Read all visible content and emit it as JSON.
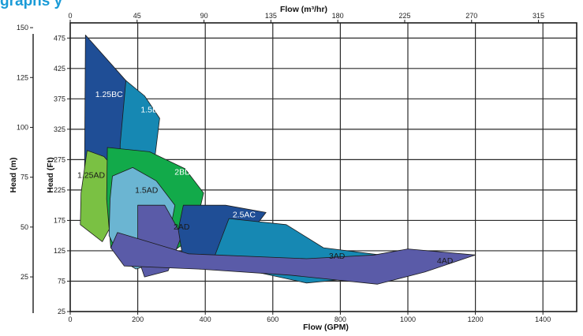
{
  "heading_fragment": "graphs y",
  "chart_data": {
    "type": "area",
    "title": "",
    "axes": {
      "x_bottom": {
        "label": "Flow (GPM)",
        "range": [
          0,
          1500
        ],
        "ticks": [
          "0",
          "200",
          "400",
          "600",
          "800",
          "1000",
          "1200",
          "1400"
        ]
      },
      "x_top": {
        "label": "Flow (m³/hr)",
        "range": [
          0,
          340.7
        ],
        "ticks": [
          "0",
          "45",
          "90",
          "135",
          "180",
          "225",
          "270",
          "315"
        ]
      },
      "y_inner": {
        "label": "Head (Ft)",
        "range": [
          25,
          500
        ],
        "ticks": [
          "25",
          "75",
          "125",
          "175",
          "225",
          "275",
          "325",
          "375",
          "425",
          "475"
        ]
      },
      "y_outer": {
        "label": "Head (m)",
        "range": [
          7.6,
          152.4
        ],
        "ticks": [
          "25",
          "50",
          "75",
          "100",
          "125",
          "150"
        ]
      }
    },
    "grid": true,
    "series": [
      {
        "name": "1.25BC",
        "color": "#1f4e96",
        "label_color": "#ffffff",
        "label_at": [
          115,
          378
        ],
        "points": [
          [
            45,
            480
          ],
          [
            165,
            405
          ],
          [
            205,
            355
          ],
          [
            195,
            305
          ],
          [
            155,
            270
          ],
          [
            110,
            238
          ],
          [
            75,
            220
          ],
          [
            42,
            218
          ]
        ]
      },
      {
        "name": "1.5BC",
        "color": "#1688b3",
        "label_color": "#ffffff",
        "label_at": [
          243,
          353
        ],
        "points": [
          [
            165,
            405
          ],
          [
            220,
            380
          ],
          [
            265,
            343
          ],
          [
            250,
            275
          ],
          [
            195,
            245
          ],
          [
            148,
            262
          ],
          [
            148,
            300
          ]
        ]
      },
      {
        "name": "1.25AD",
        "color": "#7ac143",
        "label_color": "#1a1a1a",
        "label_at": [
          62,
          245
        ],
        "points": [
          [
            50,
            290
          ],
          [
            100,
            280
          ],
          [
            155,
            245
          ],
          [
            135,
            180
          ],
          [
            95,
            140
          ],
          [
            30,
            168
          ],
          [
            32,
            220
          ]
        ]
      },
      {
        "name": "2BD",
        "color": "#12aa4a",
        "label_color": "#ffffff",
        "label_at": [
          333,
          250
        ],
        "points": [
          [
            110,
            295
          ],
          [
            235,
            288
          ],
          [
            340,
            260
          ],
          [
            395,
            220
          ],
          [
            365,
            148
          ],
          [
            290,
            118
          ],
          [
            175,
            110
          ],
          [
            120,
            130
          ],
          [
            108,
            210
          ]
        ]
      },
      {
        "name": "1.5AD",
        "color": "#6bb5d2",
        "label_color": "#1a1a1a",
        "label_at": [
          226,
          220
        ],
        "points": [
          [
            125,
            248
          ],
          [
            185,
            262
          ],
          [
            255,
            240
          ],
          [
            310,
            200
          ],
          [
            280,
            110
          ],
          [
            195,
            95
          ],
          [
            150,
            110
          ],
          [
            115,
            150
          ],
          [
            118,
            210
          ]
        ]
      },
      {
        "name": "2AD",
        "color": "#5a5ba8",
        "label_color": "#1a1a1a",
        "label_at": [
          330,
          160
        ],
        "points": [
          [
            200,
            200
          ],
          [
            280,
            200
          ],
          [
            330,
            150
          ],
          [
            290,
            92
          ],
          [
            220,
            82
          ],
          [
            200,
            115
          ]
        ]
      },
      {
        "name": "2.5AC",
        "color": "#1f4e96",
        "label_color": "#ffffff",
        "label_at": [
          515,
          180
        ],
        "points": [
          [
            335,
            200
          ],
          [
            460,
            200
          ],
          [
            580,
            188
          ],
          [
            520,
            145
          ],
          [
            420,
            105
          ],
          [
            335,
            108
          ],
          [
            320,
            160
          ]
        ]
      },
      {
        "name": "3AD",
        "color": "#1688b3",
        "label_color": "#1a1a1a",
        "label_at": [
          790,
          112
        ],
        "points": [
          [
            470,
            178
          ],
          [
            640,
            168
          ],
          [
            750,
            130
          ],
          [
            920,
            118
          ],
          [
            850,
            80
          ],
          [
            700,
            72
          ],
          [
            550,
            90
          ],
          [
            420,
            105
          ]
        ]
      },
      {
        "name": "4AD",
        "color": "#5a5ba8",
        "label_color": "#1a1a1a",
        "label_at": [
          1110,
          104
        ],
        "points": [
          [
            140,
            155
          ],
          [
            350,
            120
          ],
          [
            700,
            112
          ],
          [
            900,
            118
          ],
          [
            1000,
            128
          ],
          [
            1200,
            118
          ],
          [
            1050,
            90
          ],
          [
            910,
            70
          ],
          [
            650,
            85
          ],
          [
            380,
            95
          ],
          [
            160,
            100
          ],
          [
            120,
            130
          ]
        ]
      }
    ]
  }
}
